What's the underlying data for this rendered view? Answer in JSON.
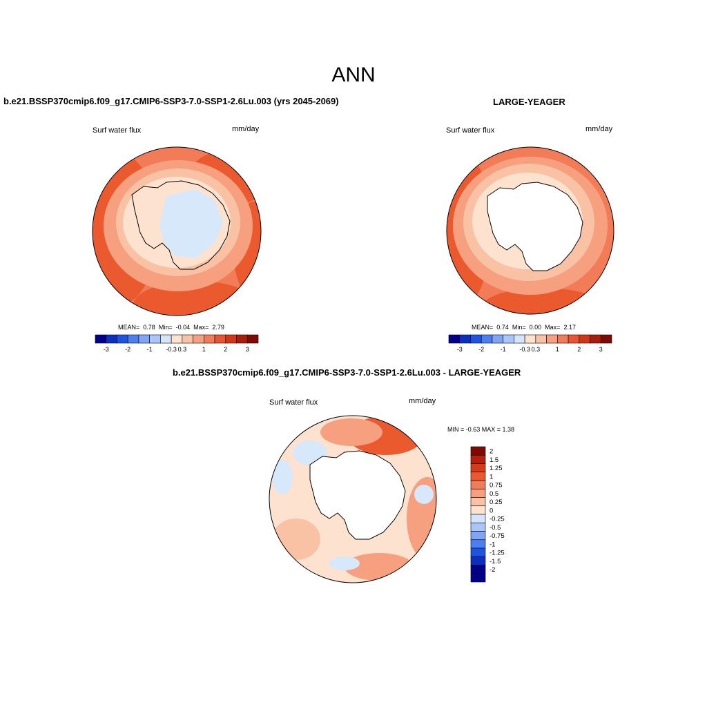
{
  "title": "ANN",
  "panels": [
    {
      "title": "b.e21.BSSP370cmip6.f09_g17.CMIP6-SSP3-7.0-SSP1-2.6Lu.003 (yrs 2045-2069)",
      "variable": "Surf water flux",
      "units": "mm/day",
      "stats": {
        "mean_label": "MEAN=",
        "mean": "0.78",
        "min_label": "Min=",
        "min": "-0.04",
        "max_label": "Max=",
        "max": "2.79"
      },
      "colorbar_ticks": [
        "-3",
        "-2",
        "-1",
        "-0.3",
        "0.3",
        "1",
        "2",
        "3"
      ]
    },
    {
      "title": "LARGE-YEAGER",
      "variable": "Surf water flux",
      "units": "mm/day",
      "stats": {
        "mean_label": "MEAN=",
        "mean": "0.74",
        "min_label": "Min=",
        "min": "0.00",
        "max_label": "Max=",
        "max": "2.17"
      },
      "colorbar_ticks": [
        "-3",
        "-2",
        "-1",
        "-0.3",
        "0.3",
        "1",
        "2",
        "3"
      ]
    },
    {
      "title": "b.e21.BSSP370cmip6.f09_g17.CMIP6-SSP3-7.0-SSP1-2.6Lu.003 - LARGE-YEAGER",
      "variable": "Surf water flux",
      "units": "mm/day",
      "minmax_text": "MIN =  -0.63 MAX =   1.38",
      "colorbar_ticks": [
        "2",
        "1.5",
        "1.25",
        "1",
        "0.75",
        "0.5",
        "0.25",
        "0",
        "-0.25",
        "-0.5",
        "-0.75",
        "-1",
        "-1.25",
        "-1.5",
        "-2"
      ]
    }
  ],
  "colors": {
    "colorbar_abs": [
      "#00008b",
      "#0b2fbf",
      "#1e55e0",
      "#4b7ff0",
      "#7fa6f5",
      "#aac6f8",
      "#d4e4fa",
      "#fde3cf",
      "#f9c2a4",
      "#f6a07f",
      "#f17c59",
      "#e9552f",
      "#d13616",
      "#a81e0a",
      "#7f0a04"
    ],
    "colorbar_diff": [
      "#7f0a04",
      "#b3200c",
      "#d63a16",
      "#ea5a2e",
      "#f27c57",
      "#f6a07f",
      "#f9c2a4",
      "#fde3cf",
      "#d4e4fa",
      "#aac6f8",
      "#7fa6f5",
      "#4b7ff0",
      "#1e55e0",
      "#0b2fbf",
      "#00008b"
    ],
    "ocean_strong": "#ea5a2e",
    "ocean_mid": "#f27c57",
    "ocean_light": "#f6a07f",
    "ocean_pale": "#f9c2a4",
    "ice_cream": "#fde3cf",
    "ice_blue": "#d6e8fa",
    "land": "#ffffff"
  }
}
